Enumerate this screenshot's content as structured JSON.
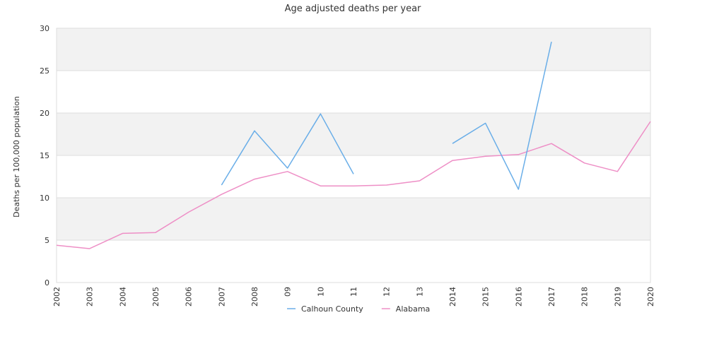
{
  "chart_data": {
    "type": "line",
    "title": "Age adjusted deaths per year",
    "xlabel": "",
    "ylabel": "Deaths per 100,000 population",
    "categories": [
      "2002",
      "2003",
      "2004",
      "2005",
      "2006",
      "2007",
      "2008",
      "09",
      "10",
      "11",
      "12",
      "13",
      "2014",
      "2015",
      "2016",
      "2017",
      "2018",
      "2019",
      "2020"
    ],
    "ylim": [
      0,
      30
    ],
    "yticks": [
      0,
      5,
      10,
      15,
      20,
      25,
      30
    ],
    "grid": "horizontal alternating bands",
    "legend_position": "bottom-center",
    "series": [
      {
        "name": "Calhoun County",
        "color": "#6aaee8",
        "values": [
          null,
          null,
          null,
          null,
          null,
          11.5,
          17.9,
          13.5,
          19.9,
          12.8,
          null,
          null,
          16.4,
          18.8,
          11.0,
          28.4,
          null,
          null,
          null
        ]
      },
      {
        "name": "Alabama",
        "color": "#ee8fc6",
        "values": [
          4.4,
          4.0,
          5.8,
          5.9,
          8.3,
          10.4,
          12.2,
          13.1,
          11.4,
          11.4,
          11.5,
          12.0,
          14.4,
          14.9,
          15.1,
          16.4,
          14.1,
          13.1,
          19.0
        ]
      }
    ]
  },
  "colors": {
    "band": "#f2f2f2",
    "grid": "#dddddd",
    "text": "#333333"
  }
}
